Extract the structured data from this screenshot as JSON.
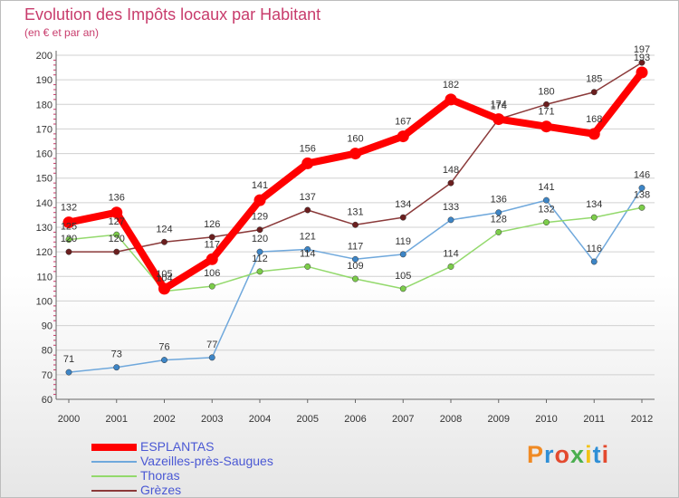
{
  "title": "Evolution des Impôts locaux par Habitant",
  "subtitle": "(en € et par an)",
  "logo_text": "Proxiti",
  "colors": {
    "title": "#c83c6c",
    "grid": "#d0d0d0",
    "axis": "#666666",
    "legend_text": "#4a58d4"
  },
  "chart_data": {
    "type": "line",
    "title": "Evolution des Impôts locaux par Habitant",
    "subtitle": "(en € et par an)",
    "xlabel": "",
    "ylabel": "",
    "categories": [
      "2000",
      "2001",
      "2002",
      "2003",
      "2004",
      "2005",
      "2006",
      "2007",
      "2008",
      "2009",
      "2010",
      "2011",
      "2012"
    ],
    "ylim": [
      60,
      200
    ],
    "yticks": [
      60,
      70,
      80,
      90,
      100,
      110,
      120,
      130,
      140,
      150,
      160,
      170,
      180,
      190,
      200
    ],
    "grid": true,
    "legend_position": "bottom-left",
    "series": [
      {
        "name": "ESPLANTAS",
        "color": "#ff0000",
        "marker_color": "#ff0000",
        "values": [
          132,
          136,
          105,
          117,
          141,
          156,
          160,
          167,
          182,
          174,
          171,
          168,
          193
        ],
        "labels": [
          "132",
          "136",
          "105",
          "117",
          "141",
          "156",
          "160",
          "167",
          "182",
          "174",
          "171",
          "168",
          "193"
        ]
      },
      {
        "name": "Vazeilles-près-Saugues",
        "color": "#6fa8dc",
        "marker_color": "#3d85c6",
        "values": [
          71,
          73,
          76,
          77,
          120,
          121,
          117,
          119,
          133,
          136,
          141,
          116,
          146
        ],
        "labels": [
          "71",
          "73",
          "76",
          "77",
          "120",
          "121",
          "117",
          "119",
          "133",
          "136",
          "141",
          "116",
          "146"
        ]
      },
      {
        "name": "Thoras",
        "color": "#93d96c",
        "marker_color": "#7ccd4a",
        "values": [
          125,
          127,
          104,
          106,
          112,
          114,
          109,
          105,
          114,
          128,
          132,
          134,
          138
        ],
        "labels": [
          "125",
          "127",
          "104",
          "106",
          "112",
          "114",
          "109",
          "105",
          "114",
          "128",
          "132",
          "134",
          "138"
        ]
      },
      {
        "name": "Grèzes",
        "color": "#8b3a3a",
        "marker_color": "#6b1f1f",
        "values": [
          120,
          120,
          124,
          126,
          129,
          137,
          131,
          134,
          148,
          174,
          180,
          185,
          197
        ],
        "labels": [
          "120",
          "120",
          "124",
          "126",
          "129",
          "137",
          "131",
          "134",
          "148",
          "174",
          "180",
          "185",
          "197"
        ]
      }
    ]
  }
}
